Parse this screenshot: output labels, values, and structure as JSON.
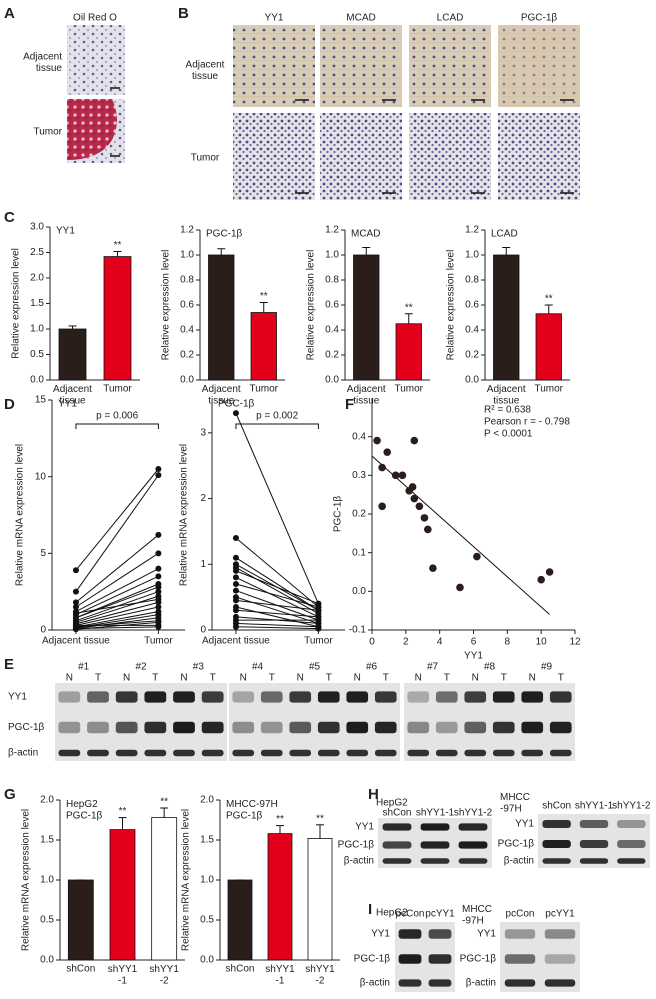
{
  "panel_letters": [
    "A",
    "B",
    "C",
    "D",
    "E",
    "F",
    "G",
    "H",
    "I"
  ],
  "panel_a": {
    "stain": "Oil Red O",
    "rows": [
      "Adjacent\ntissue",
      "Tumor"
    ]
  },
  "panel_b": {
    "columns": [
      "YY1",
      "MCAD",
      "LCAD",
      "PGC-1β"
    ],
    "rows": [
      "Adjacent\ntissue",
      "Tumor"
    ]
  },
  "panel_e": {
    "samples": [
      "#1",
      "#2",
      "#3",
      "#4",
      "#5",
      "#6",
      "#7",
      "#8",
      "#9"
    ],
    "lanes": [
      "N",
      "T"
    ],
    "rows": [
      "YY1",
      "PGC-1β",
      "β-actin"
    ]
  },
  "panel_h": {
    "blots": [
      {
        "cell": "HepG2",
        "lanes": [
          "shCon",
          "shYY1-1",
          "shYY1-2"
        ],
        "rows": [
          "YY1",
          "PGC-1β",
          "β-actin"
        ]
      },
      {
        "cell": "MHCC\n-97H",
        "lanes": [
          "shCon",
          "shYY1-1",
          "shYY1-2"
        ],
        "rows": [
          "YY1",
          "PGC-1β",
          "β-actin"
        ]
      }
    ]
  },
  "panel_i": {
    "blots": [
      {
        "cell": "HepG2",
        "lanes": [
          "pcCon",
          "pcYY1"
        ],
        "rows": [
          "YY1",
          "PGC-1β",
          "β-actin"
        ]
      },
      {
        "cell": "MHCC\n-97H",
        "lanes": [
          "pcCon",
          "pcYY1"
        ],
        "rows": [
          "YY1",
          "PGC-1β",
          "β-actin"
        ]
      }
    ]
  },
  "chart_data": [
    {
      "type": "bar",
      "title": "YY1",
      "ylabel": "Relative expression level",
      "categories": [
        "Adjacent\ntissue",
        "Tumor"
      ],
      "values": [
        1.0,
        2.42
      ],
      "errors": [
        0.06,
        0.1
      ],
      "colors": [
        "#2b1d1a",
        "#e3001b"
      ],
      "significance": [
        null,
        "**"
      ],
      "ylim": [
        0,
        3
      ],
      "yticks": [
        {
          "value": 0,
          "label": "0.0"
        },
        0.5,
        {
          "value": 1,
          "label": "1.0"
        },
        1.5,
        {
          "value": 2,
          "label": "2.0"
        },
        2.5,
        {
          "value": 3,
          "label": "3.0"
        }
      ]
    },
    {
      "type": "bar",
      "title": "PGC-1β",
      "ylabel": "Relative expression level",
      "categories": [
        "Adjacent\ntissue",
        "Tumor"
      ],
      "values": [
        1.0,
        0.54
      ],
      "errors": [
        0.05,
        0.08
      ],
      "colors": [
        "#2b1d1a",
        "#e3001b"
      ],
      "significance": [
        null,
        "**"
      ],
      "ylim": [
        0,
        1.2
      ],
      "yticks": [
        {
          "value": 0,
          "label": "0.0"
        },
        0.2,
        0.4,
        0.6,
        0.8,
        {
          "value": 1,
          "label": "1.0"
        },
        1.2
      ]
    },
    {
      "type": "bar",
      "title": "MCAD",
      "ylabel": "Relative expression level",
      "categories": [
        "Adjacent\ntissue",
        "Tumor"
      ],
      "values": [
        1.0,
        0.45
      ],
      "errors": [
        0.06,
        0.08
      ],
      "colors": [
        "#2b1d1a",
        "#e3001b"
      ],
      "significance": [
        null,
        "**"
      ],
      "ylim": [
        0,
        1.2
      ],
      "yticks": [
        {
          "value": 0,
          "label": "0.0"
        },
        0.2,
        0.4,
        0.6,
        0.8,
        {
          "value": 1,
          "label": "1.0"
        },
        1.2
      ]
    },
    {
      "type": "bar",
      "title": "LCAD",
      "ylabel": "Relative expression level",
      "categories": [
        "Adjacent\ntissue",
        "Tumor"
      ],
      "values": [
        1.0,
        0.53
      ],
      "errors": [
        0.06,
        0.07
      ],
      "colors": [
        "#2b1d1a",
        "#e3001b"
      ],
      "significance": [
        null,
        "**"
      ],
      "ylim": [
        0,
        1.2
      ],
      "yticks": [
        {
          "value": 0,
          "label": "0.0"
        },
        0.2,
        0.4,
        0.6,
        0.8,
        {
          "value": 1,
          "label": "1.0"
        },
        1.2
      ]
    },
    {
      "type": "paired",
      "title": "YY1",
      "ylabel": "Relative mRNA expression level",
      "categories": [
        "Adjacent tissue",
        "Tumor"
      ],
      "annotation": "p = 0.006",
      "pairs": [
        [
          3.9,
          10.5
        ],
        [
          2.5,
          10.1
        ],
        [
          1.8,
          6.2
        ],
        [
          1.5,
          5.0
        ],
        [
          1.2,
          4.0
        ],
        [
          1.0,
          3.5
        ],
        [
          0.8,
          2.8
        ],
        [
          0.6,
          2.5
        ],
        [
          0.5,
          2.2
        ],
        [
          0.4,
          1.8
        ],
        [
          0.3,
          1.5
        ],
        [
          0.2,
          1.2
        ],
        [
          0.15,
          1.0
        ],
        [
          0.1,
          0.8
        ],
        [
          0.05,
          0.5
        ],
        [
          0.8,
          3.0
        ],
        [
          1.1,
          2.0
        ],
        [
          0.3,
          0.3
        ],
        [
          0.2,
          0.6
        ],
        [
          0.1,
          0.2
        ]
      ],
      "ylim": [
        0,
        15
      ],
      "yticks": [
        0,
        5,
        10,
        15
      ]
    },
    {
      "type": "paired",
      "title": "PGC-1β",
      "ylabel": "Relative mRNA expression level",
      "categories": [
        "Adjacent tissue",
        "Tumor"
      ],
      "annotation": "p = 0.002",
      "pairs": [
        [
          3.3,
          0.4
        ],
        [
          1.4,
          0.35
        ],
        [
          1.1,
          0.3
        ],
        [
          1.0,
          0.3
        ],
        [
          0.95,
          0.25
        ],
        [
          0.9,
          0.4
        ],
        [
          0.8,
          0.2
        ],
        [
          0.7,
          0.35
        ],
        [
          0.6,
          0.15
        ],
        [
          0.5,
          0.1
        ],
        [
          0.45,
          0.3
        ],
        [
          0.35,
          0.05
        ],
        [
          0.3,
          0.2
        ],
        [
          0.2,
          0.1
        ],
        [
          0.15,
          0.15
        ],
        [
          0.1,
          0.05
        ],
        [
          0.05,
          0.02
        ]
      ],
      "ylim": [
        0,
        3.5
      ],
      "yticks": [
        0,
        1,
        2,
        3
      ]
    },
    {
      "type": "scatter",
      "xlabel": "YY1",
      "ylabel": "PGC-1β",
      "annotations": [
        "R² = 0.638",
        "Pearson r = - 0.798",
        "P < 0.0001"
      ],
      "x": [
        0.3,
        0.6,
        0.6,
        0.9,
        1.4,
        1.8,
        2.2,
        2.4,
        2.5,
        2.5,
        2.8,
        3.1,
        3.3,
        3.6,
        5.2,
        6.2,
        10.0,
        10.5
      ],
      "y": [
        0.39,
        0.32,
        0.22,
        0.36,
        0.3,
        0.3,
        0.26,
        0.27,
        0.39,
        0.24,
        0.22,
        0.19,
        0.16,
        0.06,
        0.01,
        0.09,
        0.03,
        0.05
      ],
      "trendline": {
        "x": [
          0,
          10.5
        ],
        "y": [
          0.35,
          -0.06
        ]
      },
      "xlim": [
        0,
        12
      ],
      "xticks": [
        0,
        2,
        4,
        6,
        8,
        10,
        12
      ],
      "ylim": [
        -0.1,
        0.5
      ],
      "yticks": [
        -0.1,
        {
          "value": 0,
          "label": "0.0"
        },
        0.1,
        0.2,
        0.3,
        0.4
      ]
    },
    {
      "type": "bar",
      "title": "HepG2\nPGC-1β",
      "ylabel": "Relative mRNA expression level",
      "categories": [
        "shCon",
        "shYY1\n-1",
        "shYY1\n-2"
      ],
      "values": [
        1.0,
        1.63,
        1.78
      ],
      "errors": [
        0,
        0.15,
        0.12
      ],
      "colors": [
        "#2b1d1a",
        "#e3001b",
        "#ffffff"
      ],
      "significance": [
        null,
        "**",
        "**"
      ],
      "ylim": [
        0,
        2
      ],
      "yticks": [
        {
          "value": 0,
          "label": "0.0"
        },
        0.5,
        {
          "value": 1,
          "label": "1.0"
        },
        1.5,
        {
          "value": 2,
          "label": "2.0"
        }
      ]
    },
    {
      "type": "bar",
      "title": "MHCC-97H\nPGC-1β",
      "ylabel": "Relative mRNA expression level",
      "categories": [
        "shCon",
        "shYY1\n-1",
        "shYY1\n-2"
      ],
      "values": [
        1.0,
        1.58,
        1.52
      ],
      "errors": [
        0,
        0.1,
        0.17
      ],
      "colors": [
        "#2b1d1a",
        "#e3001b",
        "#ffffff"
      ],
      "significance": [
        null,
        "**",
        "**"
      ],
      "ylim": [
        0,
        2
      ],
      "yticks": [
        {
          "value": 0,
          "label": "0.0"
        },
        0.5,
        {
          "value": 1,
          "label": "1.0"
        },
        1.5,
        {
          "value": 2,
          "label": "2.0"
        }
      ]
    }
  ]
}
